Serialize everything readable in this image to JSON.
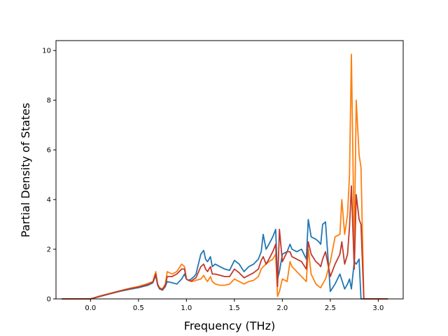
{
  "chart_data": {
    "type": "line",
    "title": "",
    "xlabel": "Frequency (THz)",
    "ylabel": "Partial Density of States",
    "xlim": [
      -0.36,
      3.26
    ],
    "ylim": [
      0,
      10.4
    ],
    "xticks": [
      0.0,
      0.5,
      1.0,
      1.5,
      2.0,
      2.5,
      3.0
    ],
    "yticks": [
      0,
      2,
      4,
      6,
      8,
      10
    ],
    "xtick_labels": [
      "0.0",
      "0.5",
      "1.0",
      "1.5",
      "2.0",
      "2.5",
      "3.0"
    ],
    "ytick_labels": [
      "0",
      "2",
      "4",
      "6",
      "8",
      "10"
    ],
    "grid": false,
    "legend": "none",
    "series": [
      {
        "color": "#1f77b4",
        "x": [
          -0.3,
          0.0,
          0.1,
          0.2,
          0.3,
          0.4,
          0.5,
          0.6,
          0.65,
          0.68,
          0.7,
          0.72,
          0.75,
          0.78,
          0.8,
          0.85,
          0.9,
          0.95,
          0.98,
          1.0,
          1.02,
          1.05,
          1.08,
          1.1,
          1.15,
          1.18,
          1.2,
          1.22,
          1.25,
          1.27,
          1.3,
          1.35,
          1.4,
          1.45,
          1.5,
          1.55,
          1.6,
          1.65,
          1.7,
          1.75,
          1.78,
          1.8,
          1.83,
          1.86,
          1.9,
          1.93,
          1.95,
          1.97,
          2.0,
          2.05,
          2.08,
          2.1,
          2.15,
          2.2,
          2.25,
          2.27,
          2.3,
          2.35,
          2.38,
          2.4,
          2.42,
          2.45,
          2.5,
          2.55,
          2.6,
          2.65,
          2.68,
          2.7,
          2.72,
          2.75,
          2.77,
          2.8,
          2.82,
          2.85,
          3.1
        ],
        "y": [
          0,
          0,
          0.1,
          0.2,
          0.3,
          0.38,
          0.45,
          0.55,
          0.65,
          0.95,
          0.55,
          0.4,
          0.35,
          0.5,
          0.7,
          0.65,
          0.6,
          0.8,
          1.0,
          0.8,
          0.75,
          0.8,
          0.9,
          1.0,
          1.8,
          1.95,
          1.6,
          1.5,
          1.7,
          1.3,
          1.4,
          1.3,
          1.2,
          1.15,
          1.55,
          1.4,
          1.1,
          1.3,
          1.4,
          1.6,
          1.9,
          2.6,
          2.0,
          2.2,
          2.5,
          2.8,
          0.8,
          1.1,
          1.8,
          1.9,
          2.2,
          2.0,
          1.9,
          2.0,
          1.6,
          3.2,
          2.5,
          2.4,
          2.3,
          2.2,
          3.0,
          3.1,
          0.3,
          0.6,
          1.0,
          0.4,
          0.6,
          0.8,
          0.4,
          1.5,
          1.4,
          1.6,
          0,
          0,
          0
        ]
      },
      {
        "color": "#ff7f0e",
        "x": [
          -0.3,
          0.0,
          0.1,
          0.2,
          0.3,
          0.4,
          0.5,
          0.6,
          0.65,
          0.68,
          0.7,
          0.72,
          0.75,
          0.78,
          0.8,
          0.85,
          0.9,
          0.95,
          0.98,
          1.0,
          1.02,
          1.05,
          1.08,
          1.1,
          1.15,
          1.18,
          1.2,
          1.22,
          1.25,
          1.27,
          1.3,
          1.35,
          1.4,
          1.45,
          1.5,
          1.55,
          1.6,
          1.65,
          1.7,
          1.75,
          1.78,
          1.8,
          1.83,
          1.86,
          1.9,
          1.93,
          1.95,
          1.97,
          2.0,
          2.05,
          2.08,
          2.1,
          2.15,
          2.2,
          2.25,
          2.27,
          2.3,
          2.35,
          2.38,
          2.4,
          2.42,
          2.45,
          2.5,
          2.55,
          2.6,
          2.62,
          2.65,
          2.68,
          2.7,
          2.72,
          2.75,
          2.77,
          2.8,
          2.82,
          2.85,
          3.1
        ],
        "y": [
          0,
          0,
          0.12,
          0.22,
          0.32,
          0.42,
          0.5,
          0.62,
          0.7,
          1.1,
          0.6,
          0.45,
          0.4,
          0.6,
          1.1,
          1.0,
          1.1,
          1.4,
          1.3,
          0.8,
          0.75,
          0.7,
          0.72,
          0.75,
          0.8,
          0.95,
          0.8,
          0.7,
          0.9,
          0.7,
          0.6,
          0.55,
          0.55,
          0.6,
          0.8,
          0.7,
          0.6,
          0.7,
          0.75,
          0.9,
          1.2,
          1.3,
          1.4,
          1.5,
          1.6,
          1.8,
          0.1,
          0.3,
          0.8,
          0.7,
          1.5,
          1.3,
          1.1,
          0.9,
          0.7,
          2.0,
          1.0,
          0.6,
          0.5,
          0.45,
          0.6,
          0.8,
          1.5,
          2.5,
          2.6,
          4.0,
          2.6,
          3.4,
          5.0,
          9.85,
          2.0,
          8.0,
          5.8,
          5.3,
          0,
          0
        ]
      },
      {
        "color": "#c0392b",
        "x": [
          -0.3,
          0.0,
          0.1,
          0.2,
          0.3,
          0.4,
          0.5,
          0.6,
          0.65,
          0.68,
          0.7,
          0.72,
          0.75,
          0.78,
          0.8,
          0.85,
          0.9,
          0.95,
          0.98,
          1.0,
          1.02,
          1.05,
          1.08,
          1.1,
          1.15,
          1.18,
          1.2,
          1.22,
          1.25,
          1.27,
          1.3,
          1.35,
          1.4,
          1.45,
          1.5,
          1.55,
          1.6,
          1.65,
          1.7,
          1.75,
          1.78,
          1.8,
          1.83,
          1.86,
          1.9,
          1.93,
          1.95,
          1.97,
          2.0,
          2.05,
          2.08,
          2.1,
          2.15,
          2.2,
          2.25,
          2.27,
          2.3,
          2.35,
          2.38,
          2.4,
          2.42,
          2.45,
          2.5,
          2.55,
          2.6,
          2.62,
          2.65,
          2.68,
          2.7,
          2.72,
          2.75,
          2.77,
          2.8,
          2.82,
          2.85,
          3.1
        ],
        "y": [
          0,
          0,
          0.11,
          0.21,
          0.31,
          0.4,
          0.48,
          0.58,
          0.68,
          1.0,
          0.58,
          0.42,
          0.38,
          0.55,
          0.9,
          0.9,
          1.0,
          1.2,
          1.2,
          0.8,
          0.75,
          0.72,
          0.8,
          0.85,
          1.3,
          1.4,
          1.2,
          1.1,
          1.3,
          1.0,
          1.0,
          0.95,
          0.9,
          0.9,
          1.2,
          1.05,
          0.85,
          0.95,
          1.05,
          1.2,
          1.55,
          1.7,
          1.4,
          1.6,
          1.9,
          2.2,
          0.5,
          2.8,
          1.5,
          1.9,
          1.9,
          1.7,
          1.6,
          1.5,
          1.2,
          2.3,
          1.8,
          1.5,
          1.4,
          1.3,
          1.6,
          1.9,
          0.9,
          1.4,
          1.8,
          2.3,
          1.4,
          1.8,
          2.9,
          4.55,
          1.2,
          4.2,
          3.2,
          3.0,
          0,
          0
        ]
      }
    ]
  }
}
